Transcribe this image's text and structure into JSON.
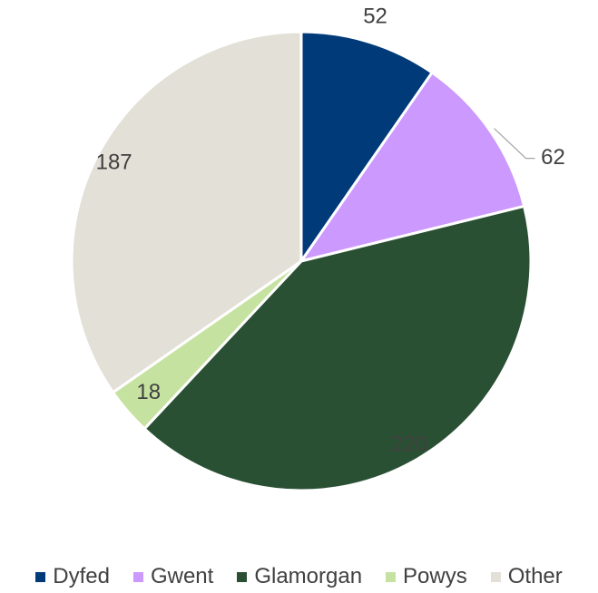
{
  "chart_data": {
    "type": "pie",
    "categories": [
      "Dyfed",
      "Gwent",
      "Glamorgan",
      "Powys",
      "Other"
    ],
    "values": [
      52,
      62,
      220,
      18,
      187
    ],
    "colors": [
      "#003a78",
      "#cc99ff",
      "#2a5034",
      "#c6e2a0",
      "#e3e0d8"
    ],
    "data_labels": [
      "52",
      "62",
      "220",
      "18",
      "187"
    ],
    "start_angle": "12 o'clock",
    "direction": "clockwise",
    "legend_position": "bottom",
    "label_color": "#404040",
    "slice_border": "#ffffff"
  }
}
